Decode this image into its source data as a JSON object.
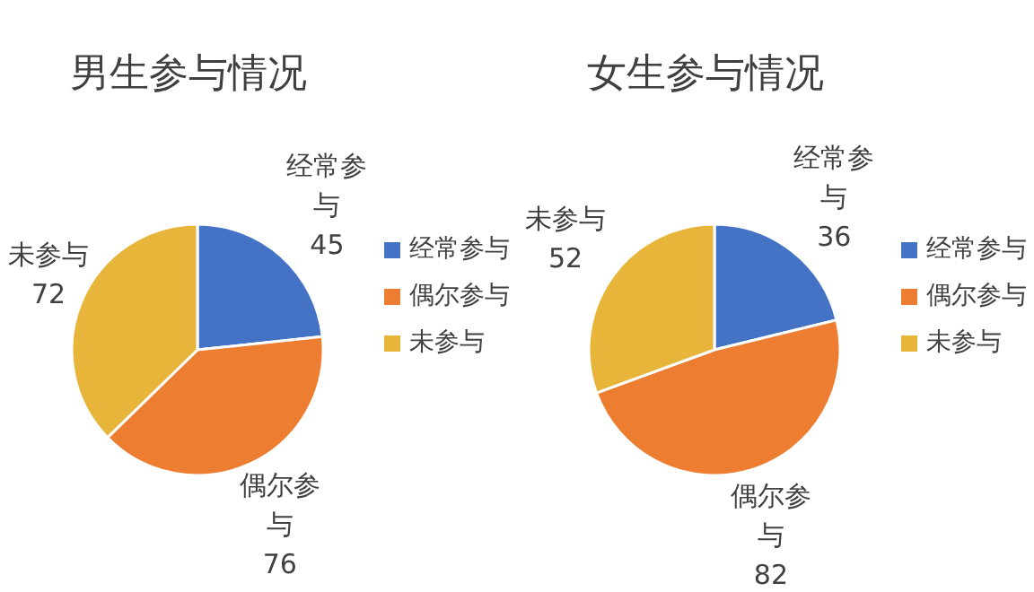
{
  "chart_data": [
    {
      "type": "pie",
      "title": "男生参与情况",
      "categories": [
        "经常参与",
        "偶尔参与",
        "未参与"
      ],
      "values": [
        45,
        76,
        72
      ],
      "colors": [
        "#4472c4",
        "#ed7d31",
        "#e8b53b"
      ],
      "data_labels": true,
      "legend": "right"
    },
    {
      "type": "pie",
      "title": "女生参与情况",
      "categories": [
        "经常参与",
        "偶尔参与",
        "未参与"
      ],
      "values": [
        36,
        82,
        52
      ],
      "colors": [
        "#4472c4",
        "#ed7d31",
        "#e8b53b"
      ],
      "data_labels": true,
      "legend": "right"
    }
  ]
}
